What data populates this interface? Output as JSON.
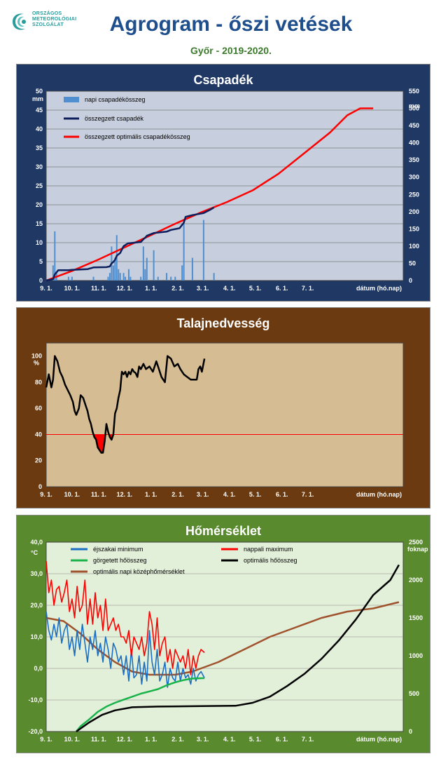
{
  "header": {
    "logo_lines": [
      "ORSZÁGOS",
      "METEOROLÓGIAI",
      "SZOLGÁLAT"
    ],
    "title": "Agrogram - őszi vetések",
    "subtitle": "Győr - 2019-2020."
  },
  "colors": {
    "panel1_bg": "#1f3864",
    "panel2_bg": "#6b3a10",
    "panel3_bg": "#5a8a2e",
    "plot1_bg": "#c7cedd",
    "plot2_bg": "#d6bc93",
    "plot3_bg": "#e2efd9"
  },
  "chart_data": [
    {
      "type": "bar",
      "title": "Csapadék",
      "ylabel_left": "mm",
      "ylabel_right": "mm",
      "xlabel": "dátum (hó.nap)",
      "x_ticks": [
        "9. 1.",
        "10. 1.",
        "11. 1.",
        "12. 1.",
        "1. 1.",
        "2. 1.",
        "3. 1.",
        "4. 1.",
        "5. 1.",
        "6. 1.",
        "7. 1."
      ],
      "y_left_ticks": [
        "0",
        "5",
        "10",
        "15",
        "20",
        "25",
        "30",
        "35",
        "40",
        "45",
        "50"
      ],
      "y_right_ticks": [
        "0",
        "50",
        "100",
        "150",
        "200",
        "250",
        "300",
        "350",
        "400",
        "450",
        "500",
        "550"
      ],
      "ylim_left": [
        0,
        50
      ],
      "ylim_right": [
        0,
        550
      ],
      "legend": [
        "napi csapadékösszeg",
        "összegzett csapadék",
        "összegzett optimális csapadékösszeg"
      ],
      "series_colors": [
        "#4f8fd0",
        "#0d1f5c",
        "#ff0000"
      ],
      "daily_bars": [
        [
          8,
          4
        ],
        [
          10,
          13
        ],
        [
          12,
          2
        ],
        [
          26,
          1
        ],
        [
          30,
          1
        ],
        [
          55,
          1
        ],
        [
          72,
          1
        ],
        [
          74,
          2
        ],
        [
          76,
          9
        ],
        [
          78,
          4
        ],
        [
          80,
          6
        ],
        [
          82,
          12
        ],
        [
          84,
          3
        ],
        [
          86,
          2
        ],
        [
          90,
          2
        ],
        [
          92,
          1
        ],
        [
          96,
          3
        ],
        [
          98,
          1
        ],
        [
          110,
          1
        ],
        [
          113,
          9
        ],
        [
          115,
          3
        ],
        [
          117,
          6
        ],
        [
          125,
          8
        ],
        [
          130,
          1
        ],
        [
          140,
          2
        ],
        [
          145,
          1
        ],
        [
          150,
          1
        ],
        [
          158,
          4
        ],
        [
          160,
          15
        ],
        [
          170,
          6
        ],
        [
          183,
          16
        ],
        [
          195,
          2
        ]
      ],
      "cumulative": [
        [
          0,
          0
        ],
        [
          8,
          4
        ],
        [
          10,
          18
        ],
        [
          14,
          30
        ],
        [
          26,
          30
        ],
        [
          30,
          31
        ],
        [
          48,
          33
        ],
        [
          55,
          38
        ],
        [
          70,
          39
        ],
        [
          74,
          41
        ],
        [
          76,
          50
        ],
        [
          78,
          54
        ],
        [
          80,
          60
        ],
        [
          82,
          72
        ],
        [
          84,
          76
        ],
        [
          86,
          80
        ],
        [
          90,
          100
        ],
        [
          95,
          108
        ],
        [
          110,
          112
        ],
        [
          113,
          120
        ],
        [
          115,
          124
        ],
        [
          117,
          130
        ],
        [
          125,
          138
        ],
        [
          140,
          142
        ],
        [
          145,
          147
        ],
        [
          155,
          152
        ],
        [
          160,
          168
        ],
        [
          162,
          185
        ],
        [
          170,
          190
        ],
        [
          183,
          196
        ],
        [
          190,
          205
        ],
        [
          195,
          212
        ]
      ],
      "optimal": [
        [
          0,
          0
        ],
        [
          30,
          28
        ],
        [
          60,
          60
        ],
        [
          90,
          95
        ],
        [
          120,
          130
        ],
        [
          150,
          165
        ],
        [
          180,
          198
        ],
        [
          210,
          228
        ],
        [
          240,
          262
        ],
        [
          270,
          310
        ],
        [
          300,
          370
        ],
        [
          330,
          430
        ],
        [
          350,
          480
        ],
        [
          365,
          500
        ],
        [
          380,
          500
        ]
      ]
    },
    {
      "type": "line",
      "title": "Talajnedvesség",
      "ylabel": "%",
      "xlabel": "dátum (hó.nap)",
      "x_ticks": [
        "9. 1.",
        "10. 1.",
        "11. 1.",
        "12. 1.",
        "1. 1.",
        "2. 1.",
        "3. 1.",
        "4. 1.",
        "5. 1.",
        "6. 1.",
        "7. 1."
      ],
      "y_ticks": [
        "0",
        "20",
        "40",
        "60",
        "80",
        "100"
      ],
      "ylim": [
        0,
        110
      ],
      "threshold": 40,
      "series_colors": [
        "#000000",
        "#ff0000"
      ],
      "soil_moisture": [
        [
          0,
          76
        ],
        [
          3,
          86
        ],
        [
          6,
          76
        ],
        [
          8,
          82
        ],
        [
          10,
          100
        ],
        [
          13,
          96
        ],
        [
          16,
          88
        ],
        [
          19,
          84
        ],
        [
          22,
          78
        ],
        [
          25,
          74
        ],
        [
          28,
          70
        ],
        [
          31,
          65
        ],
        [
          33,
          58
        ],
        [
          35,
          55
        ],
        [
          38,
          60
        ],
        [
          40,
          70
        ],
        [
          43,
          68
        ],
        [
          46,
          62
        ],
        [
          48,
          58
        ],
        [
          50,
          52
        ],
        [
          52,
          48
        ],
        [
          54,
          42
        ],
        [
          56,
          38
        ],
        [
          58,
          36
        ],
        [
          60,
          30
        ],
        [
          62,
          28
        ],
        [
          64,
          26
        ],
        [
          66,
          26
        ],
        [
          68,
          35
        ],
        [
          70,
          48
        ],
        [
          72,
          42
        ],
        [
          74,
          38
        ],
        [
          76,
          36
        ],
        [
          78,
          40
        ],
        [
          80,
          56
        ],
        [
          82,
          60
        ],
        [
          84,
          68
        ],
        [
          86,
          74
        ],
        [
          88,
          88
        ],
        [
          90,
          86
        ],
        [
          92,
          88
        ],
        [
          94,
          84
        ],
        [
          96,
          88
        ],
        [
          98,
          86
        ],
        [
          100,
          90
        ],
        [
          102,
          88
        ],
        [
          104,
          87
        ],
        [
          106,
          84
        ],
        [
          108,
          92
        ],
        [
          110,
          90
        ],
        [
          113,
          94
        ],
        [
          116,
          90
        ],
        [
          120,
          92
        ],
        [
          124,
          88
        ],
        [
          128,
          96
        ],
        [
          130,
          92
        ],
        [
          134,
          84
        ],
        [
          138,
          80
        ],
        [
          141,
          100
        ],
        [
          145,
          98
        ],
        [
          149,
          92
        ],
        [
          153,
          94
        ],
        [
          156,
          90
        ],
        [
          160,
          86
        ],
        [
          164,
          84
        ],
        [
          168,
          82
        ],
        [
          172,
          82
        ],
        [
          175,
          82
        ],
        [
          177,
          90
        ],
        [
          179,
          92
        ],
        [
          181,
          88
        ],
        [
          184,
          98
        ]
      ]
    },
    {
      "type": "line",
      "title": "Hőmérséklet",
      "ylabel_left": "°C",
      "ylabel_right": "foknap",
      "xlabel": "dátum (hó.nap)",
      "x_ticks": [
        "9. 1.",
        "10. 1.",
        "11. 1.",
        "12. 1.",
        "1. 1.",
        "2. 1.",
        "3. 1.",
        "4. 1.",
        "5. 1.",
        "6. 1.",
        "7. 1."
      ],
      "y_left_ticks": [
        "-20,0",
        "-10,0",
        "0,0",
        "10,0",
        "20,0",
        "30,0",
        "40,0"
      ],
      "y_right_ticks": [
        "0",
        "500",
        "1000",
        "1500",
        "2000",
        "2500"
      ],
      "ylim_left": [
        -20,
        40
      ],
      "ylim_right": [
        0,
        2500
      ],
      "legend": [
        "éjszakai minimum",
        "nappali maximum",
        "görgetett hőösszeg",
        "optimális hőösszeg",
        "optimális napi középhőmérséklet"
      ],
      "series_colors": [
        "#1a6fc4",
        "#ff0000",
        "#19b34a",
        "#000000",
        "#a0522d"
      ],
      "tmin": [
        [
          0,
          18
        ],
        [
          3,
          12
        ],
        [
          6,
          9
        ],
        [
          9,
          14
        ],
        [
          12,
          10
        ],
        [
          15,
          16
        ],
        [
          18,
          8
        ],
        [
          21,
          12
        ],
        [
          24,
          14
        ],
        [
          27,
          6
        ],
        [
          30,
          10
        ],
        [
          33,
          4
        ],
        [
          36,
          12
        ],
        [
          39,
          6
        ],
        [
          42,
          14
        ],
        [
          45,
          8
        ],
        [
          48,
          2
        ],
        [
          51,
          10
        ],
        [
          54,
          6
        ],
        [
          57,
          12
        ],
        [
          60,
          4
        ],
        [
          63,
          8
        ],
        [
          66,
          2
        ],
        [
          69,
          10
        ],
        [
          72,
          6
        ],
        [
          75,
          0
        ],
        [
          78,
          8
        ],
        [
          81,
          6
        ],
        [
          84,
          2
        ],
        [
          87,
          4
        ],
        [
          90,
          -2
        ],
        [
          93,
          4
        ],
        [
          96,
          -4
        ],
        [
          99,
          6
        ],
        [
          102,
          -3
        ],
        [
          105,
          -2
        ],
        [
          108,
          4
        ],
        [
          111,
          -5
        ],
        [
          114,
          2
        ],
        [
          117,
          -4
        ],
        [
          120,
          12
        ],
        [
          123,
          2
        ],
        [
          126,
          -2
        ],
        [
          129,
          6
        ],
        [
          132,
          -4
        ],
        [
          135,
          -2
        ],
        [
          138,
          2
        ],
        [
          141,
          -6
        ],
        [
          144,
          0
        ],
        [
          147,
          -3
        ],
        [
          150,
          -4
        ],
        [
          153,
          2
        ],
        [
          156,
          -4
        ],
        [
          159,
          0
        ],
        [
          162,
          -3
        ],
        [
          165,
          -2
        ],
        [
          168,
          -5
        ],
        [
          171,
          0
        ],
        [
          174,
          -4
        ],
        [
          177,
          -2
        ],
        [
          180,
          -1
        ],
        [
          184,
          -3
        ]
      ],
      "tmax": [
        [
          0,
          34
        ],
        [
          3,
          24
        ],
        [
          6,
          28
        ],
        [
          9,
          20
        ],
        [
          12,
          25
        ],
        [
          15,
          26
        ],
        [
          18,
          21
        ],
        [
          21,
          24
        ],
        [
          24,
          28
        ],
        [
          27,
          18
        ],
        [
          30,
          22
        ],
        [
          33,
          16
        ],
        [
          36,
          26
        ],
        [
          39,
          18
        ],
        [
          42,
          20
        ],
        [
          45,
          28
        ],
        [
          48,
          14
        ],
        [
          51,
          22
        ],
        [
          54,
          14
        ],
        [
          57,
          24
        ],
        [
          60,
          16
        ],
        [
          63,
          20
        ],
        [
          66,
          12
        ],
        [
          69,
          22
        ],
        [
          72,
          12
        ],
        [
          75,
          14
        ],
        [
          78,
          16
        ],
        [
          81,
          12
        ],
        [
          84,
          14
        ],
        [
          87,
          10
        ],
        [
          90,
          10
        ],
        [
          93,
          8
        ],
        [
          96,
          12
        ],
        [
          99,
          4
        ],
        [
          102,
          10
        ],
        [
          105,
          8
        ],
        [
          108,
          6
        ],
        [
          111,
          10
        ],
        [
          114,
          4
        ],
        [
          117,
          8
        ],
        [
          120,
          18
        ],
        [
          123,
          14
        ],
        [
          126,
          6
        ],
        [
          129,
          16
        ],
        [
          132,
          4
        ],
        [
          135,
          8
        ],
        [
          138,
          10
        ],
        [
          141,
          2
        ],
        [
          144,
          6
        ],
        [
          147,
          0
        ],
        [
          150,
          6
        ],
        [
          153,
          4
        ],
        [
          156,
          2
        ],
        [
          159,
          4
        ],
        [
          162,
          0
        ],
        [
          165,
          6
        ],
        [
          168,
          -2
        ],
        [
          171,
          4
        ],
        [
          174,
          0
        ],
        [
          177,
          4
        ],
        [
          180,
          6
        ],
        [
          184,
          5
        ]
      ],
      "rolling_sum": [
        [
          35,
          0
        ],
        [
          40,
          70
        ],
        [
          50,
          160
        ],
        [
          60,
          260
        ],
        [
          70,
          330
        ],
        [
          80,
          380
        ],
        [
          90,
          420
        ],
        [
          100,
          460
        ],
        [
          110,
          500
        ],
        [
          120,
          530
        ],
        [
          130,
          560
        ],
        [
          140,
          610
        ],
        [
          150,
          650
        ],
        [
          160,
          680
        ],
        [
          170,
          700
        ],
        [
          184,
          705
        ]
      ],
      "optimal_sum": [
        [
          35,
          0
        ],
        [
          50,
          120
        ],
        [
          65,
          220
        ],
        [
          80,
          280
        ],
        [
          100,
          320
        ],
        [
          130,
          330
        ],
        [
          180,
          335
        ],
        [
          220,
          340
        ],
        [
          240,
          380
        ],
        [
          260,
          460
        ],
        [
          280,
          600
        ],
        [
          300,
          760
        ],
        [
          320,
          960
        ],
        [
          340,
          1200
        ],
        [
          360,
          1480
        ],
        [
          380,
          1800
        ],
        [
          400,
          2000
        ],
        [
          410,
          2200
        ]
      ],
      "optimal_mean": [
        [
          0,
          16
        ],
        [
          20,
          15
        ],
        [
          40,
          11
        ],
        [
          60,
          6
        ],
        [
          80,
          2
        ],
        [
          100,
          -1
        ],
        [
          120,
          -2
        ],
        [
          150,
          -2
        ],
        [
          170,
          -1
        ],
        [
          200,
          2
        ],
        [
          230,
          6
        ],
        [
          260,
          10
        ],
        [
          290,
          13
        ],
        [
          320,
          16
        ],
        [
          350,
          18
        ],
        [
          380,
          19
        ],
        [
          410,
          21
        ]
      ]
    }
  ]
}
